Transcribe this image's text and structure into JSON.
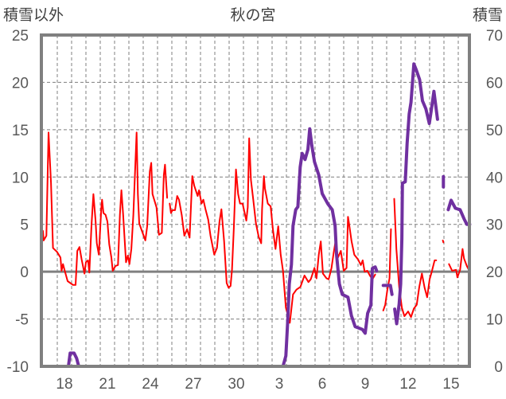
{
  "chart_data": {
    "type": "line",
    "title": "秋の宮",
    "ylabel": "積雪以外",
    "y2label": "積雪",
    "ylim": [
      -10,
      25
    ],
    "y2lim": [
      0,
      70
    ],
    "yticks": [
      "-10",
      "-5",
      "0",
      "5",
      "10",
      "15",
      "20",
      "25"
    ],
    "y2ticks": [
      "0",
      "10",
      "20",
      "30",
      "40",
      "50",
      "60",
      "70"
    ],
    "xlim_days": [
      0,
      29.85
    ],
    "xticks": [
      {
        "label": "18",
        "day": 1.5
      },
      {
        "label": "21",
        "day": 4.5
      },
      {
        "label": "24",
        "day": 7.5
      },
      {
        "label": "27",
        "day": 10.5
      },
      {
        "label": "30",
        "day": 13.5
      },
      {
        "label": "3",
        "day": 16.5
      },
      {
        "label": "6",
        "day": 19.5
      },
      {
        "label": "9",
        "day": 22.5
      },
      {
        "label": "12",
        "day": 25.5
      },
      {
        "label": "15",
        "day": 28.5
      }
    ],
    "grid": true,
    "colors": {
      "other": "#ff0000",
      "snow": "#7030a0",
      "frame": "#808080",
      "grid": "#7f7f7f"
    },
    "series": [
      {
        "name": "積雪以外",
        "axis": "left",
        "points": [
          [
            0,
            4.3
          ],
          [
            0.05,
            3.3
          ],
          [
            0.24,
            3.8
          ],
          [
            0.39,
            14.7
          ],
          [
            0.56,
            9.4
          ],
          [
            0.7,
            2.5
          ],
          [
            0.98,
            2.1
          ],
          [
            1.22,
            1.5
          ],
          [
            1.3,
            0.1
          ],
          [
            1.4,
            0.8
          ],
          [
            1.54,
            0
          ],
          [
            1.72,
            -1.0
          ],
          [
            2.1,
            -1.4
          ],
          [
            2.28,
            -1.4
          ],
          [
            2.4,
            2.2
          ],
          [
            2.55,
            2.6
          ],
          [
            2.7,
            1.3
          ],
          [
            2.9,
            -0.2
          ],
          [
            3.0,
            1.0
          ],
          [
            3.15,
            1.2
          ],
          [
            3.24,
            -0.1
          ],
          [
            3.39,
            4.9
          ],
          [
            3.52,
            8.2
          ],
          [
            3.67,
            5.4
          ],
          [
            3.76,
            3.0
          ],
          [
            3.9,
            1.8
          ],
          [
            4.08,
            6.8
          ],
          [
            4.13,
            7.6
          ],
          [
            4.22,
            6.2
          ],
          [
            4.37,
            6.0
          ],
          [
            4.5,
            5.3
          ],
          [
            4.63,
            2.9
          ],
          [
            4.78,
            1.5
          ],
          [
            4.87,
            0.1
          ],
          [
            5.06,
            0.6
          ],
          [
            5.24,
            0.7
          ],
          [
            5.37,
            6.0
          ],
          [
            5.48,
            8.6
          ],
          [
            5.6,
            6.0
          ],
          [
            5.8,
            1.0
          ],
          [
            5.93,
            1.7
          ],
          [
            6.04,
            0.8
          ],
          [
            6.17,
            2.4
          ],
          [
            6.31,
            6.0
          ],
          [
            6.54,
            14.7
          ],
          [
            6.63,
            8.2
          ],
          [
            6.72,
            5.1
          ],
          [
            6.91,
            4.3
          ],
          [
            7.15,
            3.3
          ],
          [
            7.28,
            4.8
          ],
          [
            7.46,
            10.6
          ],
          [
            7.56,
            11.5
          ],
          [
            7.65,
            8.2
          ],
          [
            7.93,
            6.8
          ],
          [
            8.1,
            3.9
          ],
          [
            8.3,
            4.1
          ],
          [
            8.44,
            10.2
          ],
          [
            8.52,
            11.3
          ],
          [
            8.67,
            7.8
          ],
          null,
          [
            8.85,
            7.2
          ],
          [
            8.94,
            6.2
          ],
          [
            9.04,
            6.5
          ],
          [
            9.22,
            6.5
          ],
          [
            9.37,
            8.0
          ],
          [
            9.5,
            7.6
          ],
          [
            9.69,
            6.0
          ],
          [
            9.87,
            3.8
          ],
          [
            10.06,
            4.5
          ],
          [
            10.24,
            3.6
          ],
          [
            10.43,
            10.1
          ],
          [
            10.56,
            9.1
          ],
          [
            10.8,
            8.0
          ],
          [
            10.9,
            8.6
          ],
          [
            11.07,
            7.2
          ],
          [
            11.2,
            7.6
          ],
          [
            11.35,
            6.6
          ],
          [
            11.54,
            5.5
          ],
          [
            11.7,
            3.8
          ],
          [
            11.96,
            1.8
          ],
          [
            12.15,
            2.5
          ],
          [
            12.33,
            5.3
          ],
          [
            12.46,
            6.6
          ],
          [
            12.65,
            3.2
          ],
          [
            12.83,
            -1.2
          ],
          [
            12.96,
            -1.7
          ],
          [
            13.1,
            -1.5
          ],
          [
            13.2,
            0.2
          ],
          [
            13.33,
            4.6
          ],
          [
            13.48,
            10.8
          ],
          [
            13.63,
            8.2
          ],
          [
            13.76,
            7.2
          ],
          [
            13.94,
            7.2
          ],
          [
            14.2,
            5.4
          ],
          [
            14.3,
            6.8
          ],
          [
            14.4,
            14.1
          ],
          [
            14.52,
            9.7
          ],
          [
            14.68,
            7.7
          ],
          [
            14.87,
            5.1
          ],
          [
            15.06,
            3.7
          ],
          [
            15.24,
            3.0
          ],
          [
            15.3,
            6.6
          ],
          [
            15.43,
            10.1
          ],
          [
            15.5,
            8.8
          ],
          [
            15.7,
            7.2
          ],
          [
            15.9,
            6.9
          ],
          [
            16.06,
            4.4
          ],
          [
            16.24,
            2.4
          ],
          [
            16.43,
            4.8
          ],
          [
            16.6,
            1.8
          ],
          [
            16.76,
            0.1
          ],
          [
            16.96,
            -3.8
          ],
          [
            17.24,
            -5.4
          ],
          [
            17.46,
            -2.4
          ],
          [
            17.7,
            -1.9
          ],
          [
            17.98,
            -1.6
          ],
          [
            18.26,
            -0.4
          ],
          [
            18.54,
            -1.1
          ],
          [
            18.7,
            -0.8
          ],
          [
            18.96,
            0.4
          ],
          [
            19.1,
            -0.7
          ],
          [
            19.26,
            1.8
          ],
          [
            19.4,
            3.2
          ],
          [
            19.55,
            -0.2
          ],
          [
            19.8,
            -0.7
          ],
          [
            19.95,
            -0.8
          ],
          [
            20.15,
            0.4
          ],
          [
            20.3,
            2.0
          ],
          [
            20.43,
            3.2
          ],
          [
            20.6,
            1.5
          ],
          [
            20.8,
            2.2
          ],
          [
            21.0,
            0.1
          ],
          [
            21.2,
            0.4
          ],
          [
            21.3,
            5.8
          ],
          [
            21.4,
            4.8
          ],
          [
            21.55,
            3.2
          ],
          [
            21.74,
            1.8
          ],
          [
            22.0,
            1.3
          ],
          [
            22.2,
            0.7
          ],
          [
            22.33,
            1.2
          ],
          [
            22.46,
            0
          ],
          [
            22.65,
            0.1
          ],
          [
            22.83,
            -0.4
          ],
          [
            23.0,
            -0.8
          ],
          [
            23.2,
            -0.3
          ],
          null,
          [
            23.76,
            -4.1
          ],
          [
            23.9,
            -3.5
          ],
          [
            24.05,
            -1.9
          ],
          [
            24.2,
            -0.7
          ],
          [
            24.3,
            4.5
          ],
          null,
          [
            24.53,
            7.7
          ],
          [
            24.68,
            2.4
          ],
          [
            24.87,
            -1.6
          ],
          [
            25.06,
            -3.8
          ],
          [
            25.24,
            -4.7
          ],
          [
            25.5,
            -4.2
          ],
          [
            25.7,
            -4.8
          ],
          [
            25.9,
            -3.9
          ],
          [
            26.1,
            -3.5
          ],
          [
            26.28,
            -1.6
          ],
          [
            26.46,
            -0.2
          ],
          [
            26.65,
            -1.7
          ],
          [
            26.83,
            -2.7
          ],
          [
            27.0,
            -0.8
          ],
          [
            27.15,
            0
          ],
          [
            27.35,
            1.2
          ],
          [
            27.46,
            1.2
          ],
          null,
          [
            27.92,
            3.3
          ],
          [
            27.96,
            3.1
          ],
          null,
          [
            28.35,
            0.8
          ],
          [
            28.57,
            0.1
          ],
          [
            28.85,
            0.2
          ],
          [
            28.94,
            -0.6
          ],
          [
            29.13,
            0.2
          ],
          [
            29.3,
            2.4
          ],
          [
            29.4,
            1.4
          ],
          [
            29.6,
            0.6
          ],
          [
            29.8,
            0
          ]
        ]
      },
      {
        "name": "積雪",
        "axis": "right",
        "points": [
          [
            0,
            0
          ],
          [
            1.78,
            0
          ],
          [
            1.9,
            2.8
          ],
          [
            2.17,
            2.8
          ],
          [
            2.35,
            1.7
          ],
          [
            2.5,
            0
          ],
          [
            16.76,
            0
          ],
          [
            16.96,
            2.2
          ],
          [
            17.1,
            10.1
          ],
          [
            17.2,
            17.4
          ],
          [
            17.35,
            21.5
          ],
          [
            17.46,
            29.7
          ],
          [
            17.65,
            33.1
          ],
          [
            17.8,
            33.7
          ],
          [
            17.96,
            42.1
          ],
          [
            18.1,
            45
          ],
          [
            18.3,
            43.7
          ],
          [
            18.5,
            45.8
          ],
          [
            18.63,
            50.2
          ],
          [
            18.78,
            46.6
          ],
          [
            18.96,
            43.2
          ],
          [
            19.26,
            40.4
          ],
          [
            19.5,
            36.5
          ],
          [
            19.9,
            34.3
          ],
          [
            20.2,
            33.1
          ],
          [
            20.4,
            29.7
          ],
          [
            20.5,
            23.6
          ],
          [
            20.7,
            17.4
          ],
          [
            20.9,
            15.2
          ],
          [
            21.3,
            14.6
          ],
          [
            21.54,
            10.7
          ],
          [
            21.8,
            8.4
          ],
          [
            22.3,
            7.8
          ],
          [
            22.5,
            7.0
          ],
          [
            22.67,
            11.2
          ],
          [
            22.9,
            12.9
          ],
          [
            23.0,
            20.7
          ],
          [
            23.2,
            21.0
          ],
          [
            23.3,
            20.2
          ],
          null,
          [
            23.76,
            17.1
          ],
          [
            24.26,
            17.1
          ],
          [
            24.37,
            15.2
          ],
          null,
          [
            24.56,
            12.1
          ],
          [
            24.7,
            9.0
          ],
          [
            24.87,
            13.2
          ],
          [
            24.98,
            17.4
          ],
          [
            25.06,
            26.9
          ],
          [
            25.1,
            38.7
          ],
          [
            25.3,
            39
          ],
          [
            25.43,
            47.1
          ],
          [
            25.57,
            53.3
          ],
          [
            25.7,
            55.8
          ],
          [
            25.9,
            63.9
          ],
          [
            26.07,
            62.6
          ],
          [
            26.3,
            60.6
          ],
          [
            26.5,
            56.1
          ],
          [
            26.74,
            54.4
          ],
          [
            26.98,
            51.3
          ],
          [
            27.1,
            53.8
          ],
          [
            27.3,
            58.1
          ],
          [
            27.55,
            52.2
          ],
          null,
          [
            27.96,
            40.1
          ],
          [
            27.96,
            37.9
          ],
          null,
          [
            28.3,
            33.1
          ],
          [
            28.5,
            35.1
          ],
          [
            28.8,
            33.4
          ],
          [
            29.13,
            33.1
          ],
          [
            29.4,
            31.2
          ],
          [
            29.6,
            30
          ],
          [
            29.8,
            30
          ]
        ]
      }
    ]
  }
}
